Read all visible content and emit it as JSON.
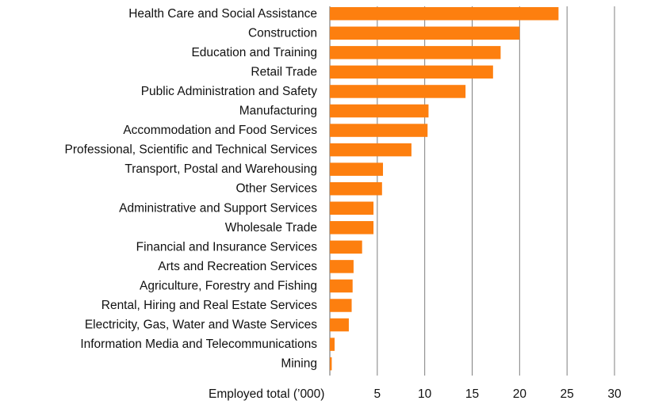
{
  "chart_data": {
    "type": "bar",
    "orientation": "horizontal",
    "categories": [
      "Health Care and Social Assistance",
      "Construction",
      "Education and Training",
      "Retail Trade",
      "Public Administration and Safety",
      "Manufacturing",
      "Accommodation and Food Services",
      "Professional, Scientific and Technical Services",
      "Transport, Postal and Warehousing",
      "Other Services",
      "Administrative and Support Services",
      "Wholesale Trade",
      "Financial and Insurance Services",
      "Arts and Recreation Services",
      "Agriculture, Forestry and Fishing",
      "Rental, Hiring and Real Estate Services",
      "Electricity, Gas, Water and Waste Services",
      "Information Media and Telecommunications",
      "Mining"
    ],
    "values": [
      24.1,
      20.0,
      18.0,
      17.2,
      14.3,
      10.4,
      10.3,
      8.6,
      5.6,
      5.5,
      4.6,
      4.6,
      3.4,
      2.5,
      2.4,
      2.3,
      2.0,
      0.5,
      0.2
    ],
    "xlabel": "Employed total (’000)",
    "xlim": [
      0,
      30
    ],
    "xticks": [
      "5",
      "10",
      "15",
      "20",
      "25",
      "30"
    ],
    "grid": true,
    "bar_color": "#fd7f0f",
    "grid_color": "#7f7f7f"
  }
}
